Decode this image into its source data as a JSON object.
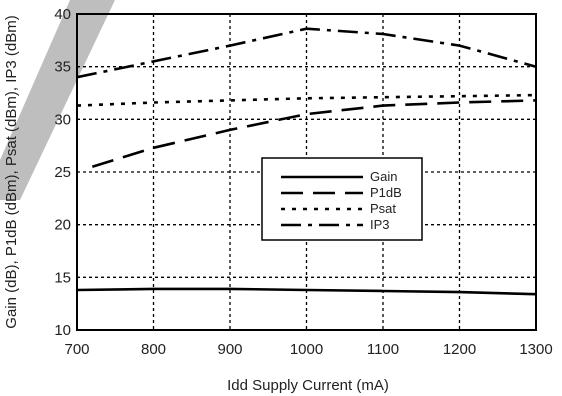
{
  "chart_data": {
    "type": "line",
    "title": "",
    "xlabel": "Idd Supply Current (mA)",
    "ylabel": "Gain (dB), P1dB (dBm), Psat (dBm), IP3 (dBm)",
    "xlim": [
      700,
      1300
    ],
    "ylim": [
      10,
      40
    ],
    "xticks": [
      "700",
      "800",
      "900",
      "1000",
      "1100",
      "1200",
      "1300"
    ],
    "yticks": [
      "10",
      "15",
      "20",
      "25",
      "30",
      "35",
      "40"
    ],
    "grid": true,
    "legend_position": "center-right",
    "series": [
      {
        "name": "Gain",
        "style": "solid",
        "x": [
          700,
          800,
          900,
          1000,
          1100,
          1200,
          1300
        ],
        "y": [
          13.8,
          13.9,
          13.9,
          13.8,
          13.7,
          13.6,
          13.4
        ]
      },
      {
        "name": "P1dB",
        "style": "dash",
        "x": [
          720,
          800,
          900,
          1000,
          1100,
          1200,
          1300
        ],
        "y": [
          25.5,
          27.3,
          29.0,
          30.5,
          31.3,
          31.6,
          31.8
        ]
      },
      {
        "name": "Psat",
        "style": "dot",
        "x": [
          700,
          800,
          900,
          1000,
          1100,
          1200,
          1300
        ],
        "y": [
          31.3,
          31.6,
          31.8,
          32.0,
          32.1,
          32.2,
          32.3
        ]
      },
      {
        "name": "IP3",
        "style": "dashdot",
        "x": [
          700,
          800,
          900,
          1000,
          1100,
          1200,
          1300
        ],
        "y": [
          34.0,
          35.5,
          37.0,
          38.6,
          38.1,
          37.0,
          35.0
        ]
      }
    ]
  }
}
